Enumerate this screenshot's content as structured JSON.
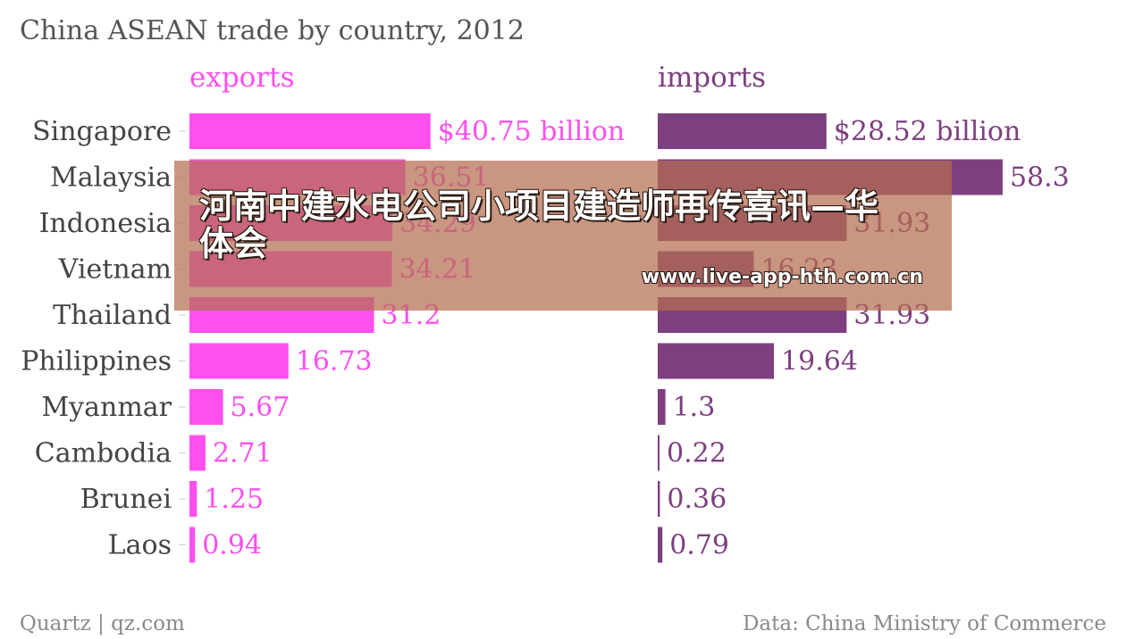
{
  "chart_data": {
    "type": "bar",
    "title": "China ASEAN trade by country, 2012",
    "categories": [
      "Singapore",
      "Malaysia",
      "Indonesia",
      "Vietnam",
      "Thailand",
      "Philippines",
      "Myanmar",
      "Cambodia",
      "Brunei",
      "Laos"
    ],
    "series": [
      {
        "name": "exports",
        "color": "#ff4fef",
        "values": [
          40.75,
          36.51,
          34.29,
          34.21,
          31.2,
          16.73,
          5.67,
          2.71,
          1.25,
          0.94
        ],
        "labels": [
          "$40.75 billion",
          "36.51",
          "34.29",
          "34.21",
          "31.2",
          "16.73",
          "5.67",
          "2.71",
          "1.25",
          "0.94"
        ]
      },
      {
        "name": "imports",
        "color": "#7e3f80",
        "values": [
          28.52,
          58.3,
          31.93,
          16.23,
          31.93,
          19.64,
          1.3,
          0.22,
          0.36,
          0.79
        ],
        "labels": [
          "$28.52 billion",
          "58.3",
          "31.93",
          "16.23",
          "31.93",
          "19.64",
          "1.3",
          "0.22",
          "0.36",
          "0.79"
        ]
      }
    ]
  },
  "footer": {
    "source_left": "Quartz | qz.com",
    "source_right": "Data: China Ministry of Commerce"
  },
  "overlay": {
    "headline": "河南中建水电公司小项目建造师再传喜讯—华体会",
    "url": "www.live-app-hth.com.cn"
  }
}
